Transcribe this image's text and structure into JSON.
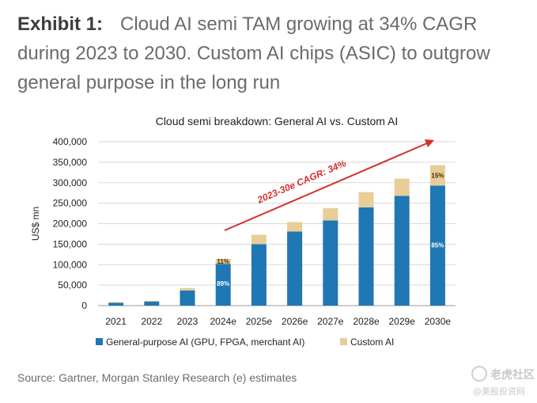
{
  "headline": {
    "label": "Exhibit 1:",
    "text": "Cloud AI semi TAM growing at 34% CAGR during 2023 to 2030. Custom AI chips (ASIC) to outgrow general purpose in the long run"
  },
  "source": "Source: Gartner, Morgan Stanley Research (e) estimates",
  "watermark": {
    "line1": "老虎社区",
    "line2": "@美股投资网"
  },
  "chart_data": {
    "type": "bar",
    "stacked": true,
    "title": "Cloud semi breakdown: General AI vs. Custom AI",
    "ylabel": "US$ mn",
    "xlabel": "",
    "ylim": [
      0,
      400000
    ],
    "yticks": [
      0,
      50000,
      100000,
      150000,
      200000,
      250000,
      300000,
      350000,
      400000
    ],
    "ytick_labels": [
      "0",
      "50,000",
      "100,000",
      "150,000",
      "200,000",
      "250,000",
      "300,000",
      "350,000",
      "400,000"
    ],
    "categories": [
      "2021",
      "2022",
      "2023",
      "2024e",
      "2025e",
      "2026e",
      "2027e",
      "2028e",
      "2029e",
      "2030e"
    ],
    "series": [
      {
        "name": "General-purpose AI (GPU, FPGA, merchant AI)",
        "color": "#1f77b4",
        "values": [
          7000,
          10000,
          37000,
          102000,
          150000,
          181000,
          208000,
          240000,
          268000,
          293000
        ]
      },
      {
        "name": "Custom AI",
        "color": "#e9cd97",
        "values": [
          1500,
          2000,
          6000,
          12000,
          23000,
          23000,
          30000,
          37000,
          42000,
          50000
        ]
      }
    ],
    "annotations": [
      {
        "text": "11%",
        "category": "2024e",
        "series": "Custom AI"
      },
      {
        "text": "89%",
        "category": "2024e",
        "series": "General-purpose AI (GPU, FPGA, merchant AI)"
      },
      {
        "text": "15%",
        "category": "2030e",
        "series": "Custom AI"
      },
      {
        "text": "85%",
        "category": "2030e",
        "series": "General-purpose AI (GPU, FPGA, merchant AI)"
      },
      {
        "text": "2023-30e CAGR: 34%",
        "color": "#d32f2f"
      }
    ],
    "legend_position": "bottom",
    "grid": "horizontal"
  }
}
